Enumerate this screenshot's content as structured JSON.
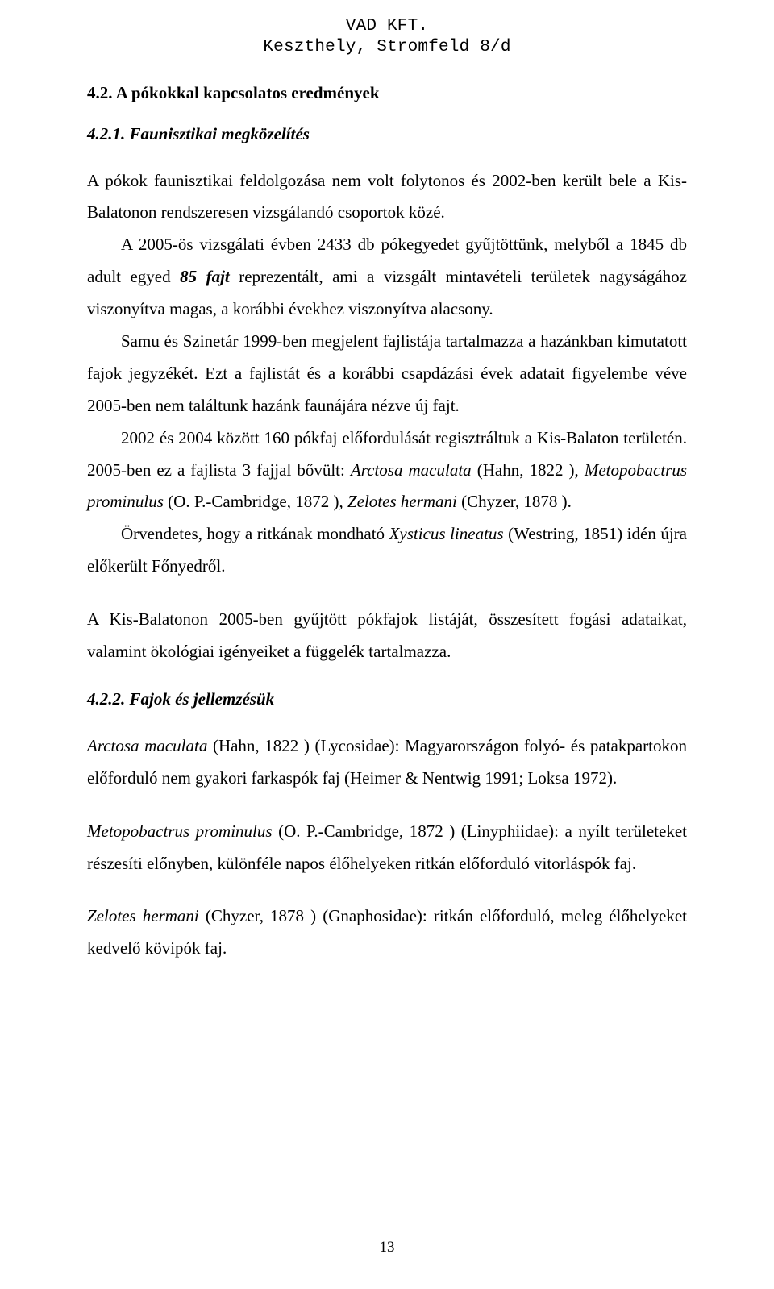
{
  "typography": {
    "header_font": "Courier New",
    "body_font": "Times New Roman",
    "header_fontsize_pt": 16,
    "body_fontsize_pt": 16,
    "line_height": 1.9,
    "text_align": "justify",
    "colors": {
      "text": "#000000",
      "background": "#ffffff"
    }
  },
  "header": {
    "line1": "VAD KFT.",
    "line2": "Keszthely, Stromfeld 8/d"
  },
  "sec42": {
    "title": "4.2. A pókokkal kapcsolatos eredmények"
  },
  "sec421": {
    "title": "4.2.1. Faunisztikai megközelítés",
    "p1": "A pókok faunisztikai feldolgozása nem volt folytonos és 2002-ben került bele a Kis-Balatonon rendszeresen vizsgálandó csoportok közé.",
    "p2a": "A 2005-ös vizsgálati évben 2433 db pókegyedet gyűjtöttünk, melyből a 1845 db adult egyed ",
    "p2b": "85 fajt",
    "p2c": " reprezentált, ami a vizsgált mintavételi területek nagyságához viszonyítva magas, a korábbi évekhez viszonyítva alacsony.",
    "p3": "Samu és Szinetár 1999-ben megjelent fajlistája tartalmazza a hazánkban kimutatott fajok jegyzékét. Ezt a fajlistát és a korábbi csapdázási évek adatait figyelembe véve 2005-ben nem találtunk hazánk faunájára nézve új fajt.",
    "p4a": "2002 és 2004 között 160 pókfaj előfordulását regisztráltuk a Kis-Balaton területén. 2005-ben ez a fajlista 3 fajjal bővült: ",
    "p4b": "Arctosa maculata",
    "p4c": " (Hahn, 1822 ), ",
    "p4d": "Metopobactrus prominulus",
    "p4e": " (O. P.-Cambridge, 1872 ), ",
    "p4f": "Zelotes hermani",
    "p4g": " (Chyzer, 1878 ).",
    "p5a": "Örvendetes, hogy a ritkának mondható ",
    "p5b": "Xysticus lineatus",
    "p5c": " (Westring, 1851) idén újra előkerült Főnyedről.",
    "p6": "A Kis-Balatonon 2005-ben gyűjtött pókfajok listáját, összesített fogási adataikat, valamint ökológiai igényeiket a függelék tartalmazza."
  },
  "sec422": {
    "title": "4.2.2. Fajok és jellemzésük",
    "sp1a": "Arctosa maculata",
    "sp1b": " (Hahn, 1822 ) (Lycosidae): Magyarországon folyó- és patakpartokon előforduló nem gyakori farkaspók faj (Heimer & Nentwig 1991; Loksa 1972).",
    "sp2a": "Metopobactrus prominulus",
    "sp2b": " (O. P.-Cambridge, 1872 ) (Linyphiidae): a nyílt területeket részesíti előnyben, különféle napos élőhelyeken ritkán előforduló vitorláspók faj.",
    "sp3a": "Zelotes hermani",
    "sp3b": " (Chyzer, 1878 ) (Gnaphosidae): ritkán előforduló, meleg élőhelyeket kedvelő kövipók faj."
  },
  "page_number": "13"
}
